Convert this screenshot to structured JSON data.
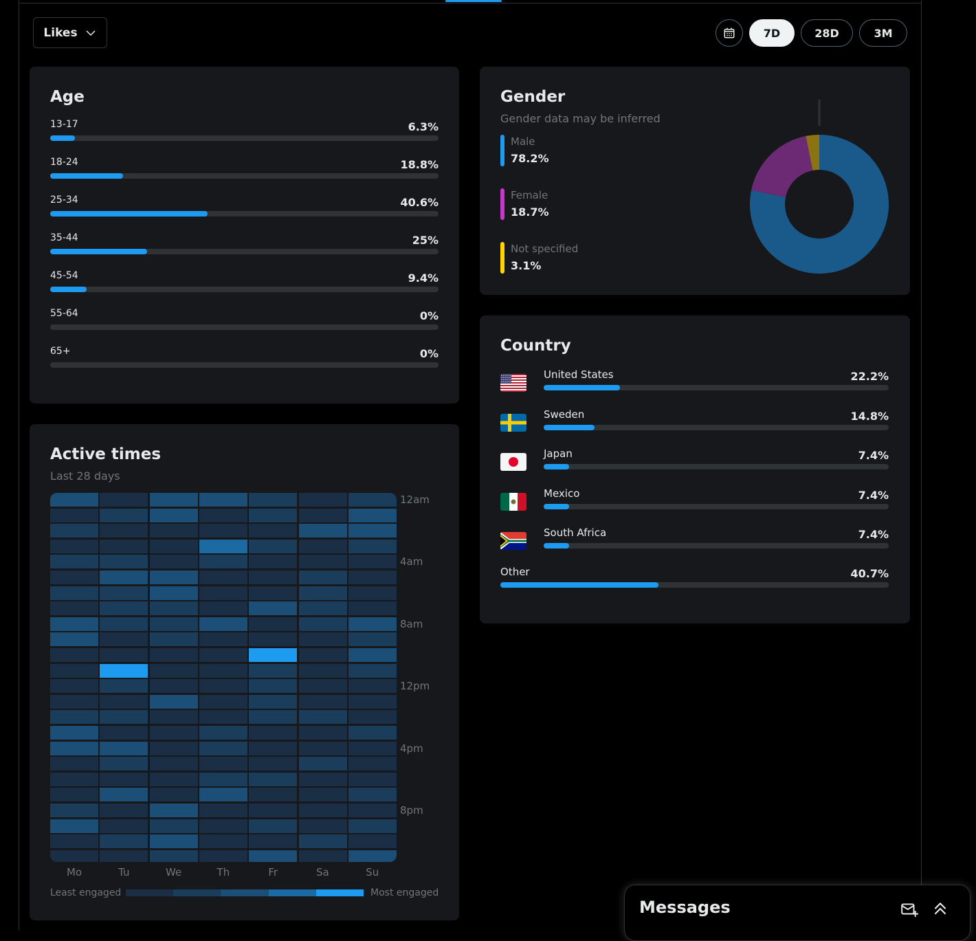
{
  "header": {
    "metric_select": "Likes",
    "range_buttons": [
      "7D",
      "28D",
      "3M"
    ],
    "active_range": "7D"
  },
  "age": {
    "title": "Age",
    "rows": [
      {
        "label": "13-17",
        "value": "6.3%",
        "pct": 6.3
      },
      {
        "label": "18-24",
        "value": "18.8%",
        "pct": 18.8
      },
      {
        "label": "25-34",
        "value": "40.6%",
        "pct": 40.6
      },
      {
        "label": "35-44",
        "value": "25%",
        "pct": 25
      },
      {
        "label": "45-54",
        "value": "9.4%",
        "pct": 9.4
      },
      {
        "label": "55-64",
        "value": "0%",
        "pct": 0
      },
      {
        "label": "65+",
        "value": "0%",
        "pct": 0
      }
    ]
  },
  "gender": {
    "title": "Gender",
    "subtitle": "Gender data may be inferred",
    "items": [
      {
        "label": "Male",
        "value": "78.2%",
        "pct": 78.2,
        "color": "#1d9bf0",
        "chart_color": "#1a5a8a"
      },
      {
        "label": "Female",
        "value": "18.7%",
        "pct": 18.7,
        "color": "#c936cc",
        "chart_color": "#6b2a73"
      },
      {
        "label": "Not specified",
        "value": "3.1%",
        "pct": 3.1,
        "color": "#ffd400",
        "chart_color": "#8a7310"
      }
    ]
  },
  "country": {
    "title": "Country",
    "rows": [
      {
        "label": "United States",
        "value": "22.2%",
        "pct": 22.2,
        "flag": "us-flag-icon"
      },
      {
        "label": "Sweden",
        "value": "14.8%",
        "pct": 14.8,
        "flag": "sweden-flag-icon"
      },
      {
        "label": "Japan",
        "value": "7.4%",
        "pct": 7.4,
        "flag": "japan-flag-icon"
      },
      {
        "label": "Mexico",
        "value": "7.4%",
        "pct": 7.4,
        "flag": "mexico-flag-icon"
      },
      {
        "label": "South Africa",
        "value": "7.4%",
        "pct": 7.4,
        "flag": "south-africa-flag-icon"
      }
    ],
    "other": {
      "label": "Other",
      "value": "40.7%",
      "pct": 40.7
    }
  },
  "active_times": {
    "title": "Active times",
    "subtitle": "Last 28 days",
    "days": [
      "Mo",
      "Tu",
      "We",
      "Th",
      "Fr",
      "Sa",
      "Su"
    ],
    "time_labels": [
      "12am",
      "4am",
      "8am",
      "12pm",
      "4pm",
      "8pm"
    ],
    "legend_low": "Least engaged",
    "legend_high": "Most engaged",
    "scale_colors": [
      "#172331",
      "#1a2f46",
      "#1b3d5c",
      "#1c4f78",
      "#1c6aa3",
      "#1d9bf0"
    ],
    "levels": [
      [
        3,
        1,
        3,
        3,
        2,
        1,
        2
      ],
      [
        1,
        2,
        3,
        1,
        2,
        1,
        3
      ],
      [
        2,
        1,
        1,
        1,
        1,
        3,
        3
      ],
      [
        1,
        1,
        1,
        4,
        2,
        1,
        2
      ],
      [
        2,
        2,
        1,
        2,
        1,
        1,
        1
      ],
      [
        1,
        3,
        3,
        1,
        1,
        2,
        1
      ],
      [
        2,
        2,
        3,
        1,
        1,
        2,
        1
      ],
      [
        1,
        2,
        2,
        1,
        3,
        2,
        1
      ],
      [
        3,
        2,
        2,
        3,
        1,
        2,
        3
      ],
      [
        3,
        1,
        2,
        1,
        1,
        1,
        2
      ],
      [
        1,
        1,
        1,
        1,
        5,
        1,
        3
      ],
      [
        1,
        5,
        1,
        1,
        2,
        1,
        2
      ],
      [
        1,
        2,
        1,
        1,
        2,
        1,
        1
      ],
      [
        1,
        1,
        3,
        1,
        2,
        1,
        1
      ],
      [
        2,
        2,
        1,
        1,
        2,
        2,
        1
      ],
      [
        3,
        1,
        1,
        2,
        1,
        1,
        2
      ],
      [
        3,
        3,
        1,
        2,
        1,
        1,
        1
      ],
      [
        1,
        2,
        1,
        1,
        1,
        2,
        1
      ],
      [
        1,
        1,
        1,
        2,
        2,
        1,
        1
      ],
      [
        1,
        3,
        1,
        3,
        1,
        1,
        2
      ],
      [
        2,
        1,
        3,
        1,
        1,
        1,
        1
      ],
      [
        3,
        1,
        2,
        1,
        2,
        1,
        2
      ],
      [
        1,
        2,
        3,
        1,
        1,
        2,
        1
      ],
      [
        1,
        1,
        2,
        1,
        3,
        1,
        3
      ]
    ]
  },
  "messages": {
    "title": "Messages"
  }
}
